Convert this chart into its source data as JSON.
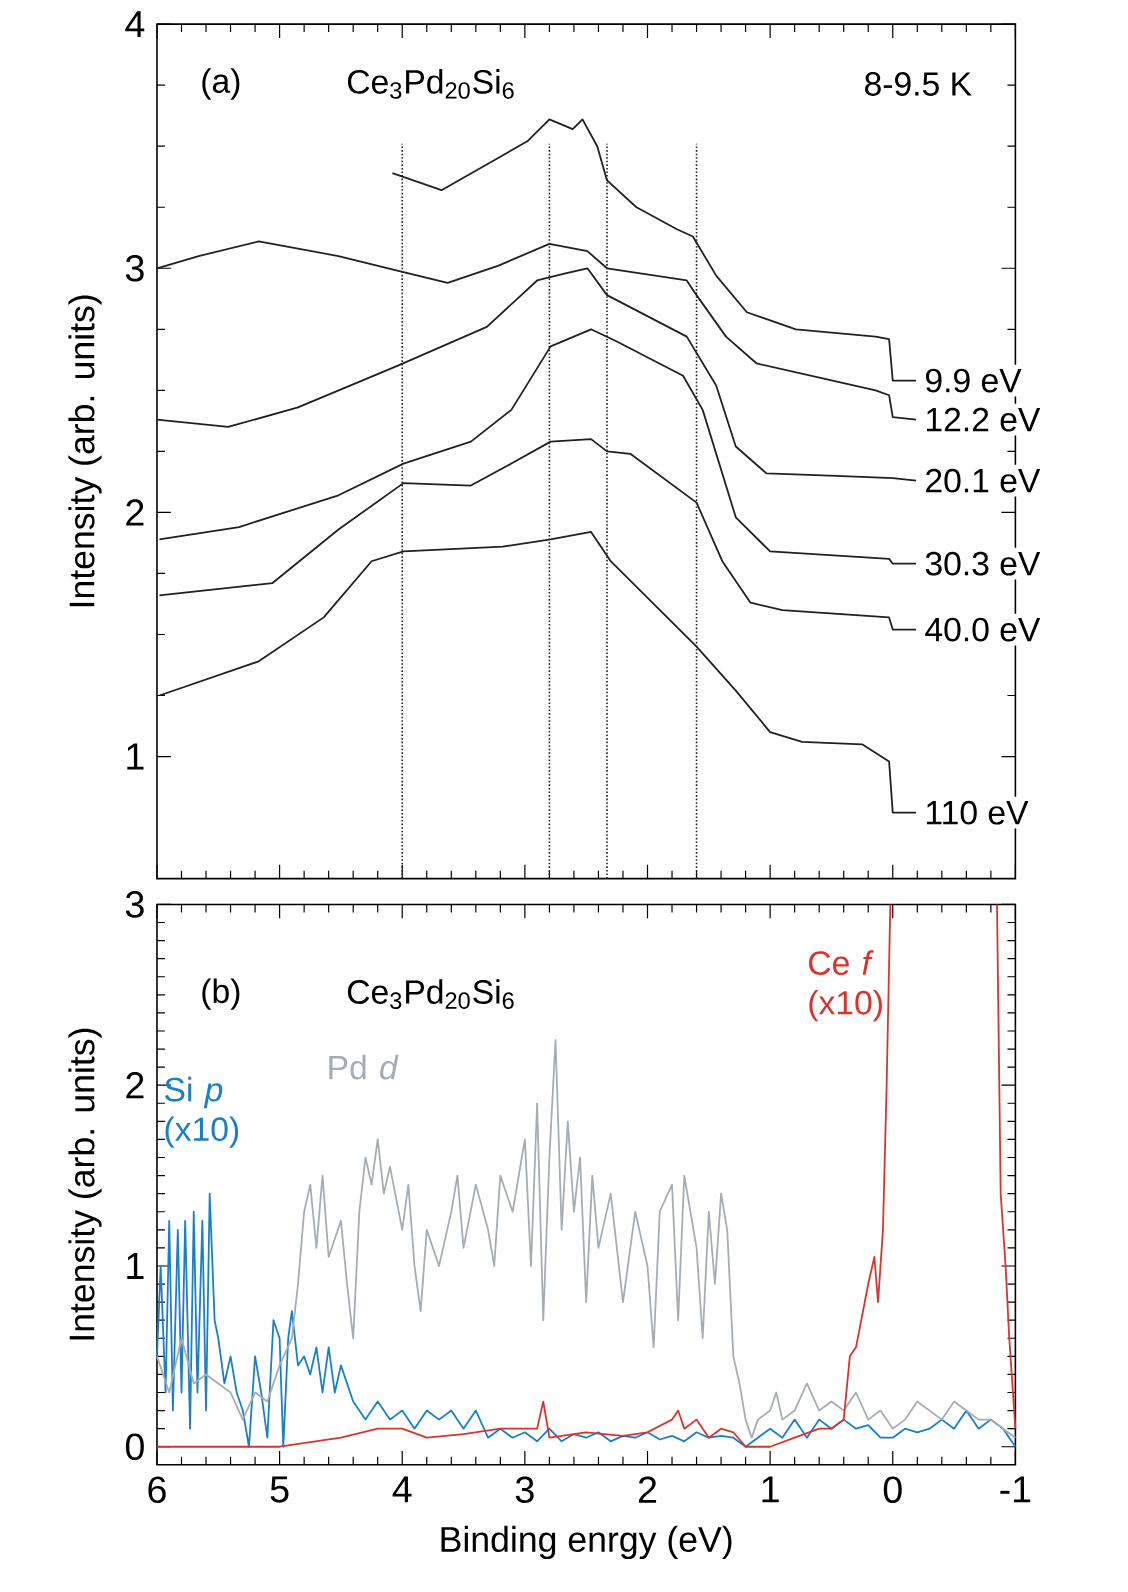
{
  "chart_data": [
    {
      "type": "line",
      "xlim": [
        6,
        -1
      ],
      "ylim": [
        0.5,
        4
      ],
      "xticks": [
        6,
        5,
        4,
        3,
        2,
        1,
        0,
        -1
      ],
      "yticks": [
        1,
        2,
        3,
        4
      ],
      "tick_labels": "y",
      "ylabel": "Intensity (arb. units)",
      "legend": false,
      "annotations": [
        "(a)",
        "Ce$_{3}$Pd$_{20}$Si$_{6}$",
        "8-9.5 K"
      ],
      "ref_lines": [
        {
          "axis": "x",
          "value": 4.0,
          "color": "#231f20",
          "line_style": "dotted"
        },
        {
          "axis": "x",
          "value": 2.8,
          "color": "#231f20",
          "line_style": "dotted"
        },
        {
          "axis": "x",
          "value": 2.33,
          "color": "#231f20",
          "line_style": "dotted"
        },
        {
          "axis": "x",
          "value": 1.6,
          "color": "#231f20",
          "line_style": "dotted"
        }
      ],
      "series": [
        {
          "name": "9.9 eV",
          "color": "#231f20",
          "x": [
            4.08,
            3.68,
            2.98,
            2.8,
            2.61,
            2.53,
            2.41,
            2.33,
            2.09,
            1.76,
            1.63,
            1.44,
            1.19,
            0.79,
            0.14,
            0.03,
            0.0,
            -0.19
          ],
          "values": [
            3.39,
            3.32,
            3.52,
            3.61,
            3.57,
            3.61,
            3.5,
            3.36,
            3.25,
            3.16,
            3.13,
            2.97,
            2.82,
            2.75,
            2.72,
            2.71,
            2.54,
            2.54
          ]
        },
        {
          "name": "12.2 eV",
          "color": "#231f20",
          "x": [
            6.0,
            5.66,
            5.17,
            4.52,
            4.04,
            3.63,
            3.22,
            2.8,
            2.49,
            2.33,
            1.68,
            1.6,
            1.36,
            1.11,
            0.14,
            0.03,
            0.0,
            -0.19
          ],
          "values": [
            3.0,
            3.05,
            3.11,
            3.05,
            2.99,
            2.94,
            3.01,
            3.1,
            3.07,
            3.0,
            2.95,
            2.89,
            2.72,
            2.61,
            2.5,
            2.48,
            2.39,
            2.38
          ]
        },
        {
          "name": "20.1 eV",
          "color": "#231f20",
          "x": [
            6.0,
            5.42,
            4.85,
            4.04,
            3.31,
            2.9,
            2.66,
            2.49,
            2.33,
            1.68,
            1.44,
            1.28,
            1.03,
            0.46,
            0.0,
            -0.19
          ],
          "values": [
            2.38,
            2.35,
            2.43,
            2.6,
            2.76,
            2.95,
            2.98,
            3.0,
            2.89,
            2.72,
            2.52,
            2.27,
            2.16,
            2.15,
            2.14,
            2.13
          ]
        },
        {
          "name": "30.3 eV",
          "color": "#231f20",
          "x": [
            5.98,
            5.33,
            4.52,
            3.99,
            3.44,
            3.11,
            2.79,
            2.46,
            2.25,
            1.71,
            1.55,
            1.28,
            1.0,
            0.03,
            0.0,
            -0.19
          ],
          "values": [
            1.89,
            1.94,
            2.07,
            2.2,
            2.29,
            2.42,
            2.68,
            2.75,
            2.7,
            2.56,
            2.42,
            1.98,
            1.84,
            1.81,
            1.79,
            1.79
          ]
        },
        {
          "name": "40.0 eV",
          "color": "#231f20",
          "x": [
            5.98,
            5.06,
            4.52,
            3.99,
            3.44,
            3.11,
            2.79,
            2.46,
            2.33,
            2.14,
            1.6,
            1.39,
            1.16,
            0.9,
            0.03,
            0.0,
            -0.19
          ],
          "values": [
            1.66,
            1.71,
            1.93,
            2.12,
            2.11,
            2.2,
            2.29,
            2.3,
            2.25,
            2.24,
            2.04,
            1.8,
            1.63,
            1.6,
            1.57,
            1.52,
            1.52
          ]
        },
        {
          "name": "110 eV",
          "color": "#231f20",
          "x": [
            5.98,
            5.17,
            4.64,
            4.25,
            3.99,
            3.18,
            2.79,
            2.46,
            2.3,
            1.6,
            1.28,
            1.0,
            0.74,
            0.25,
            0.03,
            0.0,
            -0.19
          ],
          "values": [
            1.25,
            1.39,
            1.57,
            1.8,
            1.84,
            1.86,
            1.89,
            1.92,
            1.8,
            1.45,
            1.27,
            1.1,
            1.06,
            1.05,
            0.98,
            0.77,
            0.77
          ]
        }
      ]
    },
    {
      "type": "line",
      "xlim": [
        6,
        -1
      ],
      "ylim": [
        -0.1,
        3
      ],
      "xticks": [
        6,
        5,
        4,
        3,
        2,
        1,
        0,
        -1
      ],
      "yticks": [
        0,
        1,
        2,
        3
      ],
      "xlabel": "Binding enrgy (eV)",
      "ylabel": "Intensity (arb. units)",
      "legend": false,
      "annotations": [
        "(b)",
        "Ce$_{3}$Pd$_{20}$Si$_{6}$"
      ],
      "series": [
        {
          "name": "Si *p* (x10)",
          "color": "#1a7fc4",
          "x": [
            6.0,
            5.97,
            5.93,
            5.9,
            5.87,
            5.83,
            5.8,
            5.77,
            5.73,
            5.7,
            5.67,
            5.63,
            5.6,
            5.57,
            5.53,
            5.5,
            5.45,
            5.4,
            5.35,
            5.3,
            5.25,
            5.2,
            5.15,
            5.1,
            5.05,
            5.0,
            4.97,
            4.93,
            4.9,
            4.85,
            4.8,
            4.75,
            4.7,
            4.65,
            4.6,
            4.55,
            4.5,
            4.4,
            4.3,
            4.2,
            4.1,
            4.0,
            3.9,
            3.8,
            3.7,
            3.6,
            3.5,
            3.4,
            3.3,
            3.2,
            3.1,
            3.0,
            2.9,
            2.8,
            2.7,
            2.6,
            2.5,
            2.4,
            2.3,
            2.2,
            2.1,
            2.0,
            1.9,
            1.8,
            1.7,
            1.6,
            1.5,
            1.4,
            1.3,
            1.2,
            1.1,
            1.0,
            0.9,
            0.8,
            0.7,
            0.6,
            0.5,
            0.4,
            0.3,
            0.2,
            0.1,
            0.0,
            -0.1,
            -0.2,
            -0.3,
            -0.4,
            -0.5,
            -0.6,
            -0.7,
            -0.8,
            -0.9,
            -1.0
          ],
          "values": [
            0.5,
            1.0,
            0.3,
            1.25,
            0.2,
            1.2,
            0.3,
            1.25,
            0.1,
            1.3,
            0.3,
            1.25,
            0.2,
            1.4,
            0.7,
            0.6,
            0.35,
            0.5,
            0.3,
            0.2,
            0.0,
            0.5,
            0.3,
            0.05,
            0.7,
            0.6,
            0.0,
            0.6,
            0.75,
            0.45,
            0.5,
            0.4,
            0.55,
            0.3,
            0.55,
            0.3,
            0.45,
            0.25,
            0.15,
            0.25,
            0.15,
            0.2,
            0.1,
            0.2,
            0.15,
            0.2,
            0.1,
            0.2,
            0.05,
            0.1,
            0.05,
            0.08,
            0.03,
            0.1,
            0.03,
            0.07,
            0.05,
            0.08,
            0.03,
            0.06,
            0.05,
            0.08,
            0.04,
            0.06,
            0.03,
            0.08,
            0.05,
            0.06,
            0.05,
            0.0,
            0.05,
            0.1,
            0.05,
            0.15,
            0.05,
            0.15,
            0.1,
            0.15,
            0.1,
            0.12,
            0.05,
            0.05,
            0.1,
            0.08,
            0.1,
            0.15,
            0.1,
            0.2,
            0.1,
            0.15,
            0.1,
            0.0
          ]
        },
        {
          "name": "Pd *d*",
          "color": "#a6acb3",
          "x": [
            6.0,
            5.9,
            5.8,
            5.7,
            5.6,
            5.5,
            5.4,
            5.3,
            5.2,
            5.1,
            5.0,
            4.9,
            4.85,
            4.8,
            4.75,
            4.7,
            4.65,
            4.6,
            4.5,
            4.45,
            4.4,
            4.35,
            4.3,
            4.25,
            4.2,
            4.15,
            4.1,
            4.0,
            3.95,
            3.9,
            3.85,
            3.8,
            3.7,
            3.6,
            3.55,
            3.5,
            3.4,
            3.3,
            3.25,
            3.2,
            3.1,
            3.0,
            2.95,
            2.9,
            2.85,
            2.8,
            2.75,
            2.7,
            2.65,
            2.6,
            2.55,
            2.5,
            2.45,
            2.4,
            2.3,
            2.2,
            2.1,
            2.0,
            1.95,
            1.9,
            1.8,
            1.75,
            1.7,
            1.6,
            1.55,
            1.5,
            1.45,
            1.4,
            1.35,
            1.3,
            1.25,
            1.2,
            1.15,
            1.1,
            1.0,
            0.95,
            0.9,
            0.8,
            0.7,
            0.6,
            0.5,
            0.4,
            0.3,
            0.2,
            0.1,
            0.0,
            -0.1,
            -0.2,
            -0.3,
            -0.4,
            -0.5,
            -0.6,
            -0.7,
            -0.8,
            -0.9,
            -1.0
          ],
          "values": [
            0.5,
            0.3,
            0.6,
            0.35,
            0.4,
            0.35,
            0.3,
            0.15,
            0.3,
            0.25,
            0.45,
            0.6,
            0.9,
            1.3,
            1.45,
            1.1,
            1.5,
            1.05,
            1.25,
            0.9,
            0.6,
            1.3,
            1.6,
            1.45,
            1.7,
            1.4,
            1.55,
            1.2,
            1.45,
            1.0,
            0.75,
            1.2,
            1.0,
            1.3,
            1.5,
            1.1,
            1.45,
            1.2,
            1.0,
            1.5,
            1.3,
            1.7,
            1.0,
            1.9,
            0.7,
            1.6,
            2.25,
            1.2,
            1.8,
            1.3,
            1.6,
            0.8,
            1.5,
            1.1,
            1.4,
            0.8,
            1.3,
            1.0,
            0.55,
            1.3,
            1.45,
            0.7,
            1.5,
            1.1,
            0.6,
            1.3,
            0.9,
            1.4,
            1.2,
            0.5,
            0.35,
            0.15,
            0.05,
            0.15,
            0.2,
            0.3,
            0.15,
            0.2,
            0.35,
            0.2,
            0.25,
            0.2,
            0.3,
            0.15,
            0.2,
            0.1,
            0.15,
            0.25,
            0.2,
            0.15,
            0.25,
            0.2,
            0.15,
            0.15,
            0.1,
            0.05
          ]
        },
        {
          "name": "Ce *f* (x10)",
          "color": "#d9342b",
          "x": [
            6.0,
            5.0,
            4.8,
            4.5,
            4.2,
            4.0,
            3.8,
            3.5,
            3.2,
            3.0,
            2.9,
            2.85,
            2.8,
            2.5,
            2.2,
            2.0,
            1.8,
            1.75,
            1.7,
            1.6,
            1.5,
            1.4,
            1.3,
            1.2,
            1.0,
            0.8,
            0.6,
            0.5,
            0.4,
            0.35,
            0.3,
            0.2,
            0.15,
            0.12,
            0.08,
            0.05,
            0.02,
            -0.4,
            -0.85,
            -0.88,
            -0.92,
            -0.95,
            -1.0
          ],
          "values": [
            0.0,
            0.0,
            0.02,
            0.05,
            0.1,
            0.1,
            0.05,
            0.07,
            0.1,
            0.1,
            0.1,
            0.25,
            0.05,
            0.08,
            0.06,
            0.08,
            0.15,
            0.2,
            0.1,
            0.15,
            0.05,
            0.1,
            0.08,
            0.0,
            0.0,
            0.05,
            0.1,
            0.1,
            0.15,
            0.5,
            0.55,
            0.9,
            1.05,
            0.8,
            1.2,
            2.0,
            3.0,
            null,
            3.0,
            1.4,
            1.0,
            0.6,
            0.1
          ]
        }
      ]
    }
  ]
}
